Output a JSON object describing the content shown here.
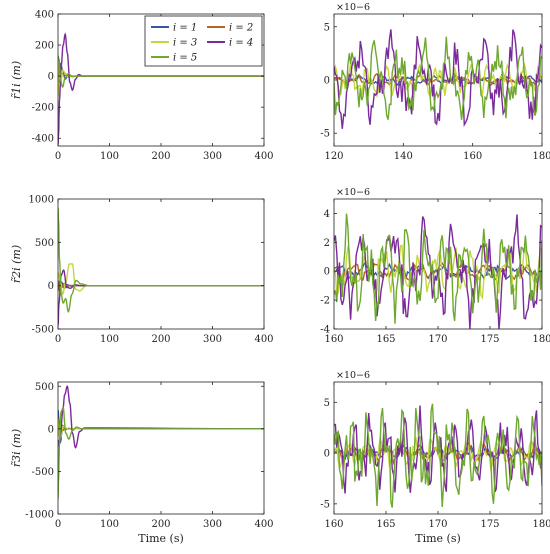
{
  "figure": {
    "xlabel_bottom": "Time (s)"
  },
  "legend": {
    "entries": [
      {
        "label": "i = 1",
        "color": "#3b53a4"
      },
      {
        "label": "i = 2",
        "color": "#b5651d"
      },
      {
        "label": "i = 3",
        "color": "#c3d83f"
      },
      {
        "label": "i = 4",
        "color": "#7a2a9a"
      },
      {
        "label": "i = 5",
        "color": "#6ea830"
      }
    ]
  },
  "chart_data": [
    {
      "id": "r1-full",
      "type": "line",
      "ylabel": "r̃1i (m)",
      "xlabel": "",
      "xlim": [
        0,
        400
      ],
      "ylim": [
        -450,
        400
      ],
      "xticks": [
        0,
        100,
        200,
        300,
        400
      ],
      "yticks": [
        -400,
        -200,
        0,
        200,
        400
      ],
      "grid": false,
      "legend": "top-right",
      "series": [
        {
          "name": "i = 1",
          "color": "#3b53a4",
          "x": [
            0,
            2,
            5,
            9,
            14,
            20,
            28,
            40,
            400
          ],
          "y": [
            -60,
            30,
            80,
            40,
            -20,
            10,
            -2,
            0,
            0
          ]
        },
        {
          "name": "i = 2",
          "color": "#b5651d",
          "x": [
            0,
            2,
            5,
            9,
            14,
            20,
            28,
            40,
            400
          ],
          "y": [
            30,
            -40,
            -20,
            15,
            5,
            -3,
            1,
            0,
            0
          ]
        },
        {
          "name": "i = 3",
          "color": "#c3d83f",
          "x": [
            0,
            2,
            5,
            9,
            14,
            20,
            28,
            40,
            400
          ],
          "y": [
            90,
            -120,
            -60,
            40,
            20,
            -8,
            3,
            0,
            0
          ]
        },
        {
          "name": "i = 4",
          "color": "#7a2a9a",
          "x": [
            0,
            1,
            3,
            6,
            10,
            14,
            18,
            23,
            28,
            34,
            40,
            48,
            400
          ],
          "y": [
            -440,
            -380,
            -150,
            60,
            200,
            270,
            150,
            -40,
            -90,
            -20,
            10,
            0,
            0
          ]
        },
        {
          "name": "i = 5",
          "color": "#6ea830",
          "x": [
            0,
            2,
            5,
            9,
            14,
            20,
            28,
            40,
            400
          ],
          "y": [
            130,
            110,
            -30,
            -70,
            -10,
            15,
            -3,
            0,
            0
          ]
        }
      ]
    },
    {
      "id": "r1-zoom",
      "type": "line",
      "ylabel": "",
      "xlabel": "",
      "xlim": [
        120,
        180
      ],
      "ylim": [
        -6.2,
        6.2
      ],
      "y_exponent": "×10−6",
      "xticks": [
        120,
        140,
        160,
        180
      ],
      "yticks": [
        -5,
        0,
        5
      ],
      "grid": false,
      "series": [
        {
          "name": "i = 1",
          "color": "#3b53a4",
          "amp": 0.4,
          "period": 7,
          "phase": 0.3
        },
        {
          "name": "i = 2",
          "color": "#b5651d",
          "amp": 0.5,
          "period": 6,
          "phase": 1.1
        },
        {
          "name": "i = 3",
          "color": "#c3d83f",
          "amp": 1.6,
          "period": 5,
          "phase": 2.0
        },
        {
          "name": "i = 4",
          "color": "#7a2a9a",
          "amp": 4.2,
          "period": 9,
          "phase": 0.8
        },
        {
          "name": "i = 5",
          "color": "#6ea830",
          "amp": 3.6,
          "period": 7,
          "phase": 2.6
        }
      ]
    },
    {
      "id": "r2-full",
      "type": "line",
      "ylabel": "r̃2i (m)",
      "xlabel": "",
      "xlim": [
        0,
        400
      ],
      "ylim": [
        -500,
        1000
      ],
      "xticks": [
        0,
        100,
        200,
        300,
        400
      ],
      "yticks": [
        -500,
        0,
        500,
        1000
      ],
      "grid": false,
      "series": [
        {
          "name": "i = 1",
          "color": "#3b53a4",
          "x": [
            0,
            3,
            7,
            12,
            18,
            25,
            35,
            400
          ],
          "y": [
            -50,
            60,
            40,
            -30,
            10,
            -4,
            0,
            0
          ]
        },
        {
          "name": "i = 2",
          "color": "#b5651d",
          "x": [
            0,
            3,
            7,
            12,
            18,
            25,
            35,
            400
          ],
          "y": [
            40,
            -60,
            -20,
            25,
            -8,
            3,
            0,
            0
          ]
        },
        {
          "name": "i = 3",
          "color": "#c3d83f",
          "x": [
            0,
            4,
            9,
            15,
            22,
            28,
            34,
            42,
            55,
            400
          ],
          "y": [
            150,
            60,
            -100,
            40,
            250,
            250,
            -40,
            -60,
            0,
            0
          ]
        },
        {
          "name": "i = 4",
          "color": "#7a2a9a",
          "x": [
            0,
            2,
            6,
            11,
            17,
            24,
            33,
            45,
            400
          ],
          "y": [
            -460,
            -200,
            120,
            180,
            -20,
            -30,
            10,
            0,
            0
          ]
        },
        {
          "name": "i = 5",
          "color": "#6ea830",
          "x": [
            0,
            1,
            3,
            6,
            10,
            15,
            20,
            27,
            35,
            45,
            60,
            400
          ],
          "y": [
            900,
            750,
            300,
            -100,
            -200,
            -150,
            -300,
            -100,
            60,
            20,
            0,
            0
          ]
        }
      ]
    },
    {
      "id": "r2-zoom",
      "type": "line",
      "ylabel": "",
      "xlabel": "",
      "xlim": [
        160,
        180
      ],
      "ylim": [
        -4,
        5
      ],
      "y_exponent": "×10−6",
      "xticks": [
        160,
        165,
        170,
        175,
        180
      ],
      "yticks": [
        -4,
        -2,
        0,
        2,
        4
      ],
      "grid": false,
      "series": [
        {
          "name": "i = 1",
          "color": "#3b53a4",
          "amp": 0.5,
          "period": 2.5,
          "phase": 0.4
        },
        {
          "name": "i = 2",
          "color": "#b5651d",
          "amp": 0.6,
          "period": 2.1,
          "phase": 1.2
        },
        {
          "name": "i = 3",
          "color": "#c3d83f",
          "amp": 1.8,
          "period": 1.7,
          "phase": 2.1
        },
        {
          "name": "i = 4",
          "color": "#7a2a9a",
          "amp": 3.8,
          "period": 2.9,
          "phase": 0.7
        },
        {
          "name": "i = 5",
          "color": "#6ea830",
          "amp": 3.4,
          "period": 1.9,
          "phase": 2.5
        }
      ]
    },
    {
      "id": "r3-full",
      "type": "line",
      "ylabel": "r̃3i (m)",
      "xlabel": "Time (s)",
      "xlim": [
        0,
        400
      ],
      "ylim": [
        -1000,
        550
      ],
      "xticks": [
        0,
        100,
        200,
        300,
        400
      ],
      "yticks": [
        -1000,
        -500,
        0,
        500
      ],
      "grid": false,
      "series": [
        {
          "name": "i = 1",
          "color": "#3b53a4",
          "x": [
            0,
            2,
            5,
            9,
            14,
            20,
            28,
            40,
            400
          ],
          "y": [
            220,
            100,
            -150,
            40,
            -10,
            5,
            0,
            0,
            0
          ]
        },
        {
          "name": "i = 2",
          "color": "#b5651d",
          "x": [
            0,
            2,
            5,
            9,
            14,
            20,
            28,
            40,
            400
          ],
          "y": [
            -60,
            60,
            20,
            -20,
            8,
            -3,
            0,
            0,
            0
          ]
        },
        {
          "name": "i = 3",
          "color": "#c3d83f",
          "x": [
            0,
            2,
            5,
            9,
            14,
            20,
            28,
            40,
            400
          ],
          "y": [
            120,
            -80,
            -100,
            30,
            15,
            -5,
            0,
            0,
            0
          ]
        },
        {
          "name": "i = 4",
          "color": "#7a2a9a",
          "x": [
            0,
            2,
            5,
            9,
            13,
            18,
            23,
            28,
            34,
            42,
            52,
            400
          ],
          "y": [
            -130,
            -200,
            -60,
            200,
            400,
            500,
            300,
            -50,
            -220,
            -30,
            10,
            0
          ]
        },
        {
          "name": "i = 5",
          "color": "#6ea830",
          "x": [
            0,
            1,
            3,
            6,
            10,
            15,
            21,
            28,
            36,
            46,
            400
          ],
          "y": [
            -820,
            -600,
            -150,
            200,
            250,
            -50,
            -120,
            -20,
            20,
            0,
            0
          ]
        }
      ]
    },
    {
      "id": "r3-zoom",
      "type": "line",
      "ylabel": "",
      "xlabel": "Time (s)",
      "xlim": [
        160,
        180
      ],
      "ylim": [
        -6,
        7
      ],
      "y_exponent": "×10−6",
      "xticks": [
        160,
        165,
        170,
        175,
        180
      ],
      "yticks": [
        -5,
        0,
        5
      ],
      "grid": false,
      "series": [
        {
          "name": "i = 1",
          "color": "#3b53a4",
          "amp": 0.6,
          "period": 1.6,
          "phase": 0.2
        },
        {
          "name": "i = 2",
          "color": "#b5651d",
          "amp": 0.9,
          "period": 1.6,
          "phase": 1.0
        },
        {
          "name": "i = 3",
          "color": "#c3d83f",
          "amp": 1.4,
          "period": 1.6,
          "phase": 2.2
        },
        {
          "name": "i = 4",
          "color": "#7a2a9a",
          "amp": 4.0,
          "period": 1.6,
          "phase": 0.5
        },
        {
          "name": "i = 5",
          "color": "#6ea830",
          "amp": 5.0,
          "period": 1.6,
          "phase": 1.6
        }
      ]
    }
  ]
}
